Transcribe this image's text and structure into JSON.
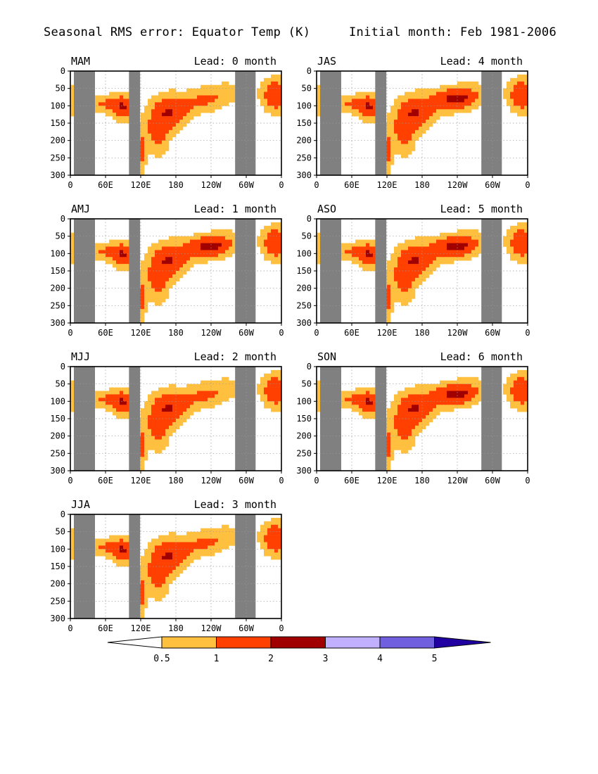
{
  "header": {
    "title": "Seasonal RMS error: Equator Temp (K)",
    "subtitle": "Initial month: Feb 1981-2006"
  },
  "chart_data": {
    "type": "contour",
    "x_ticks": [
      "0",
      "60E",
      "120E",
      "180",
      "120W",
      "60W",
      "0"
    ],
    "x_tick_lon": [
      0,
      60,
      120,
      180,
      240,
      300,
      360
    ],
    "y_ticks": [
      "0",
      "50",
      "100",
      "150",
      "200",
      "250",
      "300"
    ],
    "ylim": [
      300,
      0
    ],
    "xlim": [
      0,
      360
    ],
    "xlabel": "",
    "ylabel": "",
    "levels": [
      0.5,
      1,
      2,
      3,
      4,
      5
    ],
    "level_labels": [
      "0.5",
      "1",
      "2",
      "3",
      "4",
      "5"
    ],
    "colors": [
      "#ffffff",
      "#ffc040",
      "#ff4000",
      "#a00000",
      "#c0b0ff",
      "#7060e0",
      "#2000a0"
    ],
    "land_color": "#808080",
    "land_lon_ranges": [
      [
        6,
        42
      ],
      [
        100,
        119
      ],
      [
        281,
        316
      ]
    ],
    "panels": [
      {
        "season": "MAM",
        "lead": "Lead: 0 month",
        "ne_max": 2
      },
      {
        "season": "AMJ",
        "lead": "Lead: 1 month",
        "ne_max": 3
      },
      {
        "season": "MJJ",
        "lead": "Lead: 2 month",
        "ne_max": 2
      },
      {
        "season": "JJA",
        "lead": "Lead: 3 month",
        "ne_max": 2
      },
      {
        "season": "JAS",
        "lead": "Lead: 4 month",
        "ne_max": 3
      },
      {
        "season": "ASO",
        "lead": "Lead: 5 month",
        "ne_max": 3
      },
      {
        "season": "SON",
        "lead": "Lead: 6 month",
        "ne_max": 3
      }
    ]
  }
}
